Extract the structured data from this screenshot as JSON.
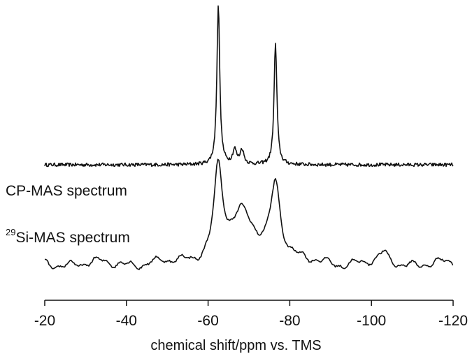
{
  "chart_data": {
    "type": "line",
    "title": "",
    "xlabel": "chemical shift/ppm vs. TMS",
    "ylabel": "",
    "xlim": [
      -20,
      -120
    ],
    "x_ticks": [
      -20,
      -40,
      -60,
      -80,
      -100,
      -120
    ],
    "x_tick_labels": [
      "-20",
      "-40",
      "-60",
      "-80",
      "-100",
      "-120"
    ],
    "grid": false,
    "line_color": "#111111",
    "series": [
      {
        "label_prefix": "",
        "label_main": "CP-MAS spectrum",
        "peaks_ppm": [
          -62.5,
          -66.5,
          -68.3,
          -76.5
        ],
        "relative_heights": [
          1.0,
          0.09,
          0.09,
          0.76
        ]
      },
      {
        "label_prefix": "29",
        "label_main": "Si-MAS spectrum",
        "peaks_ppm": [
          -62.5,
          -68.5,
          -76.5,
          -103
        ],
        "relative_heights": [
          1.0,
          0.42,
          0.85,
          0.1
        ]
      }
    ]
  }
}
